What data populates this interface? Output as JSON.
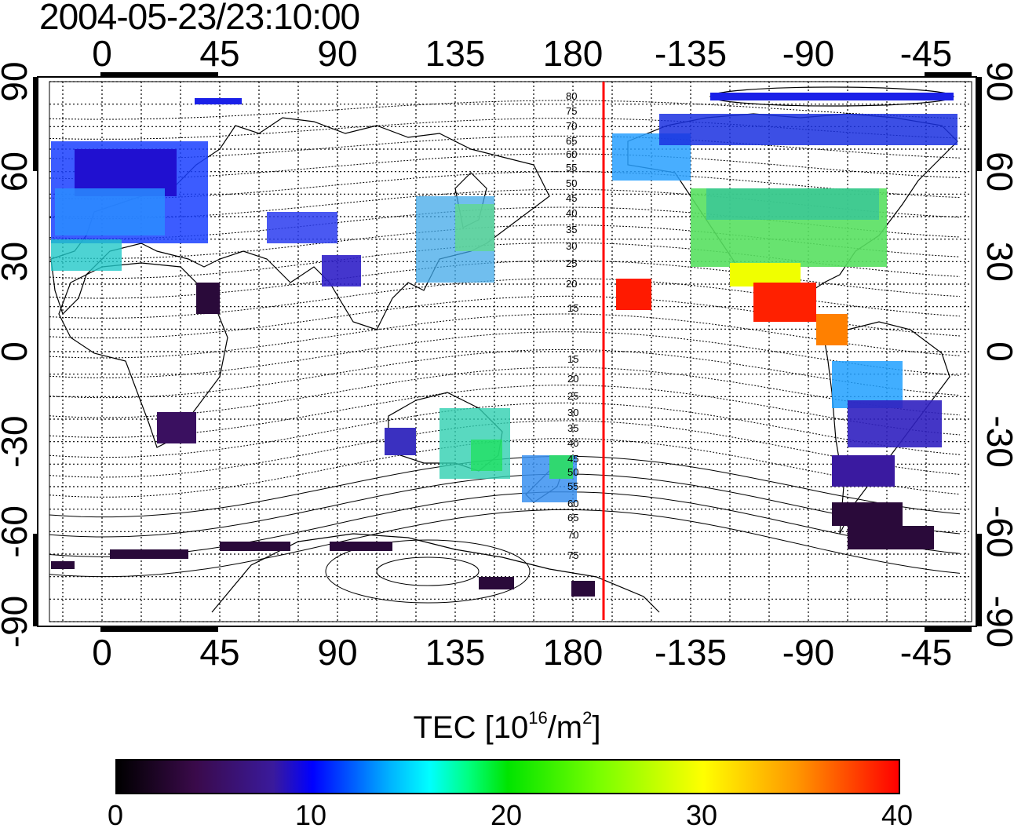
{
  "title": "2004-05-23/23:10:00",
  "map": {
    "lon_labels": [
      "0",
      "45",
      "90",
      "135",
      "180",
      "-135",
      "-90",
      "-45"
    ],
    "lat_labels": [
      "90",
      "60",
      "30",
      "0",
      "-30",
      "-60",
      "-90"
    ],
    "contour_labels": [
      "80",
      "75",
      "70",
      "65",
      "60",
      "55",
      "50",
      "45",
      "40",
      "35",
      "30",
      "25",
      "20",
      "15",
      "15",
      "20",
      "25",
      "30",
      "35",
      "40",
      "45",
      "50",
      "55",
      "60",
      "65",
      "70",
      "75"
    ],
    "terminator_color": "#ff0000"
  },
  "colorbar": {
    "title_main": "TEC  [10",
    "title_sup1": "16",
    "title_mid": "/m",
    "title_sup2": "2",
    "title_end": "]",
    "ticks": [
      "0",
      "10",
      "20",
      "30",
      "40"
    ],
    "range": [
      0,
      40
    ]
  }
}
